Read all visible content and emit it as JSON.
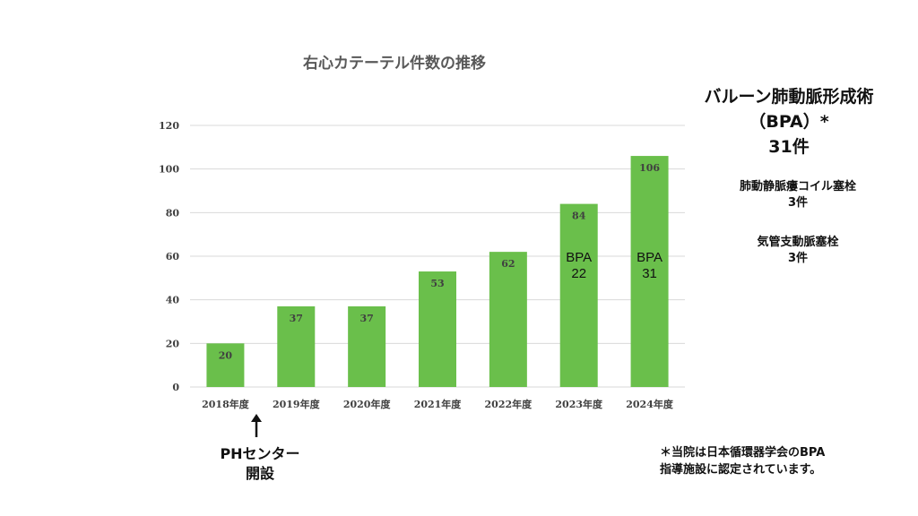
{
  "chart_data": {
    "type": "bar",
    "title": "右心カテーテル件数の推移",
    "categories": [
      "2018年度",
      "2019年度",
      "2020年度",
      "2021年度",
      "2022年度",
      "2023年度",
      "2024年度"
    ],
    "values": [
      20,
      37,
      37,
      53,
      62,
      84,
      106
    ],
    "data_labels": [
      "20",
      "37",
      "37",
      "53",
      "62",
      "84",
      "106"
    ],
    "ylim": [
      0,
      120
    ],
    "yticks": [
      0,
      20,
      40,
      60,
      80,
      100,
      120
    ],
    "ytick_labels": [
      "0",
      "20",
      "40",
      "60",
      "80",
      "100",
      "120"
    ],
    "grid": true,
    "bar_color": "#6abf4b",
    "bar_annotations": [
      {
        "category": "2023年度",
        "lines": [
          "BPA",
          "22"
        ]
      },
      {
        "category": "2024年度",
        "lines": [
          "BPA",
          "31"
        ]
      }
    ]
  },
  "bpa_heading": {
    "line1": "バルーン肺動脈形成術",
    "line2": "（BPA）*",
    "line3": "31件"
  },
  "side_notes": [
    {
      "line1": "肺動静脈瘻コイル塞栓",
      "line2": "3件"
    },
    {
      "line1": "気管支動脈塞栓",
      "line2": "3件"
    }
  ],
  "ph_center": {
    "arrow_icon": "up-arrow-icon",
    "line1": "PHセンター",
    "line2": "開設"
  },
  "footnote": {
    "line1": "＊当院は日本循環器学会のBPA",
    "line2": "指導施設に認定されています。"
  }
}
